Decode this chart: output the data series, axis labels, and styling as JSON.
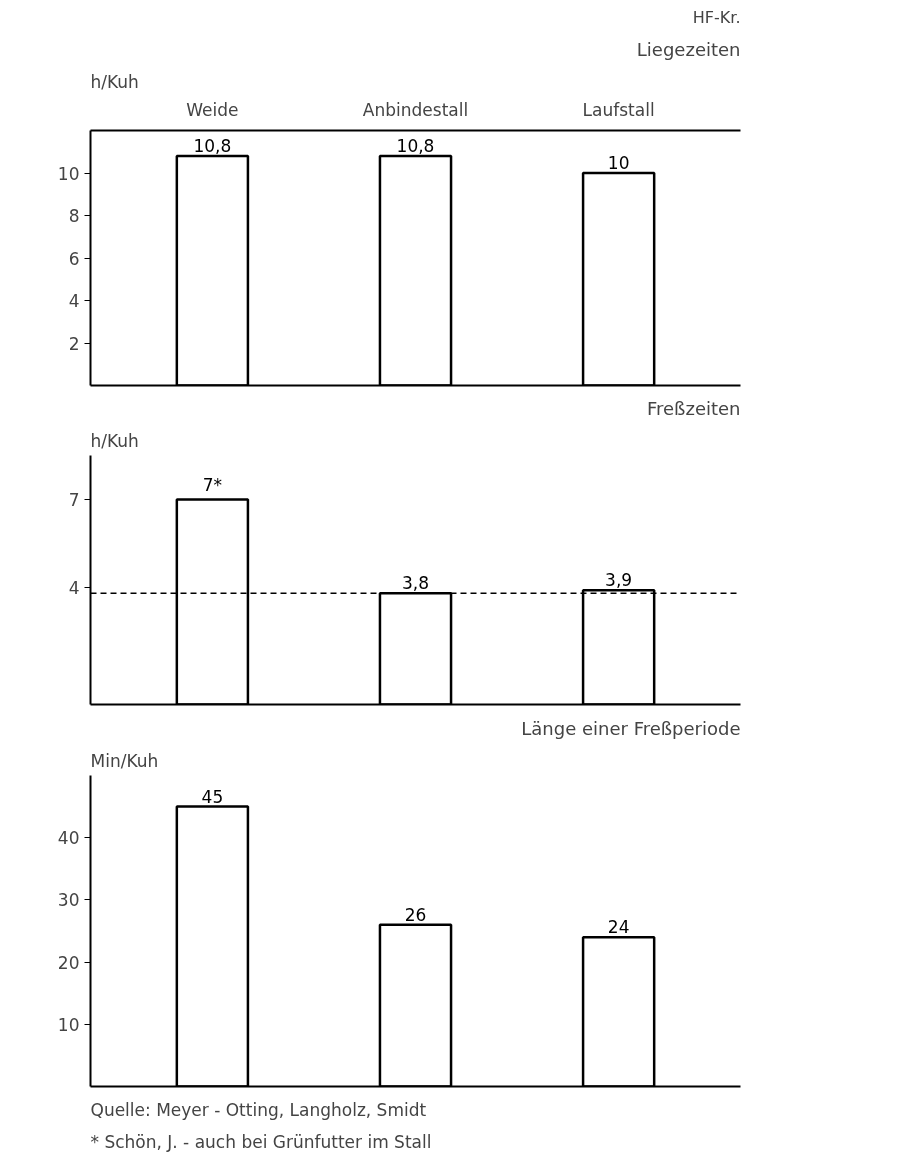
{
  "chart_data": [
    {
      "type": "bar",
      "title": "Liegezeiten",
      "subtitle": "HF-Kr.",
      "ylabel": "h/Kuh",
      "categories": [
        "Weide",
        "Anbindestall",
        "Laufstall"
      ],
      "values": [
        10.8,
        10.8,
        10
      ],
      "value_labels": [
        "10,8",
        "10,8",
        "10"
      ],
      "color": "#ffffff",
      "ylim": [
        0,
        12
      ],
      "yticks": [
        2,
        4,
        6,
        8,
        10
      ],
      "grid": false
    },
    {
      "type": "bar",
      "title": "Freßzeiten",
      "ylabel": "h/Kuh",
      "categories": [
        null,
        null,
        null
      ],
      "values": [
        7,
        3.8,
        3.9
      ],
      "value_labels": [
        "7*",
        "3,8",
        "3,9"
      ],
      "color": "#ffffff",
      "ylim": [
        0,
        8.5
      ],
      "yticks": [
        4,
        7
      ],
      "ref_lines": [
        {
          "axis": "y",
          "value": 3.8,
          "label": null,
          "line_style": "dashed"
        }
      ],
      "tick_labels": "y",
      "grid": false
    },
    {
      "type": "bar",
      "title": "Länge einer Freßperiode",
      "ylabel": "Min/Kuh",
      "categories": [
        null,
        null,
        null
      ],
      "values": [
        45,
        26,
        24
      ],
      "value_labels": [
        "45",
        "26",
        "24"
      ],
      "color": "#ffffff",
      "ylim": [
        0,
        50
      ],
      "yticks": [
        10,
        20,
        30,
        40
      ],
      "tick_labels": "y",
      "grid": false,
      "annotations": [
        "Quelle: Meyer - Otting, Langholz, Smidt",
        "* Schön, J. - auch bei Grünfutter im Stall"
      ]
    }
  ]
}
